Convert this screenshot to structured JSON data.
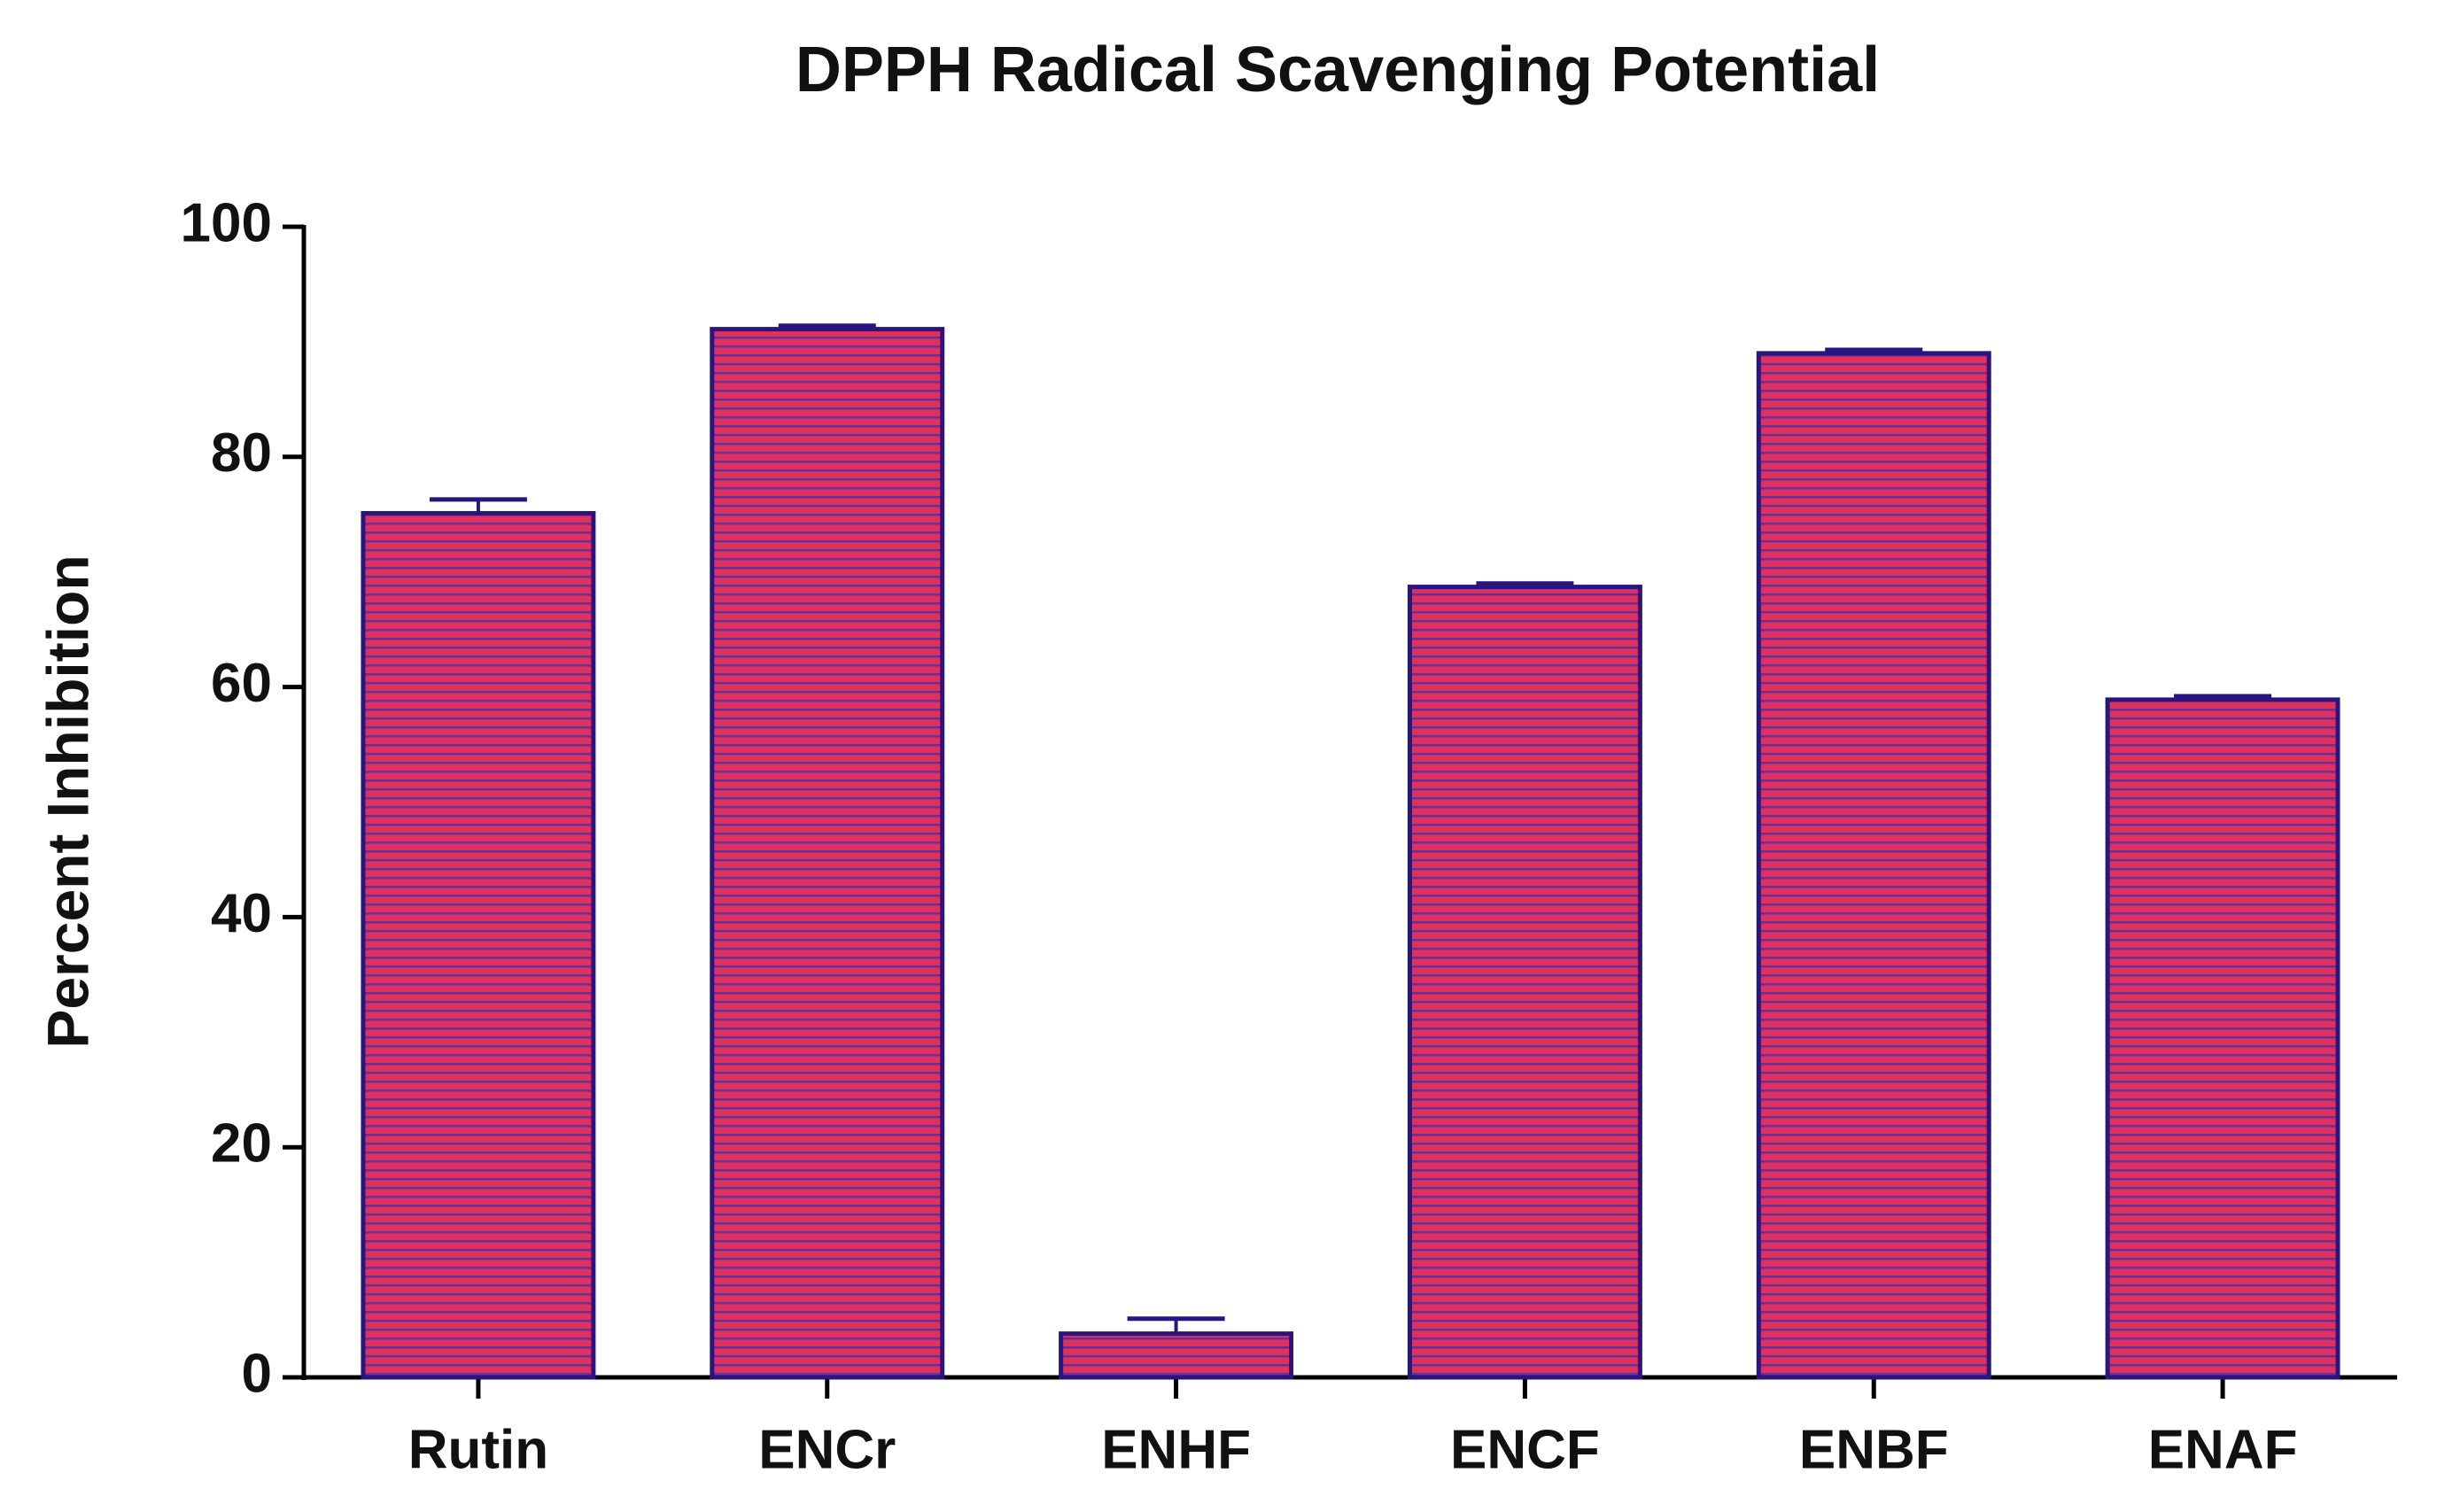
{
  "chart_data": {
    "type": "bar",
    "title": "DPPH Radical Scavenging Potential",
    "y_label": "Percent Inhibition",
    "categories": [
      "Rutin",
      "ENCr",
      "ENHF",
      "ENCF",
      "ENBF",
      "ENAF"
    ],
    "values": [
      75.1,
      91.1,
      3.8,
      68.7,
      89.0,
      58.9
    ],
    "errors": [
      1.2,
      0.3,
      1.3,
      0.3,
      0.3,
      0.3
    ],
    "color": "#e0305e",
    "stripe_color": "#4b2a9c",
    "edge_color": "#2a1580",
    "ylim": [
      0,
      100
    ],
    "yticks": [
      0,
      20,
      40,
      60,
      80,
      100
    ],
    "grid": false
  }
}
